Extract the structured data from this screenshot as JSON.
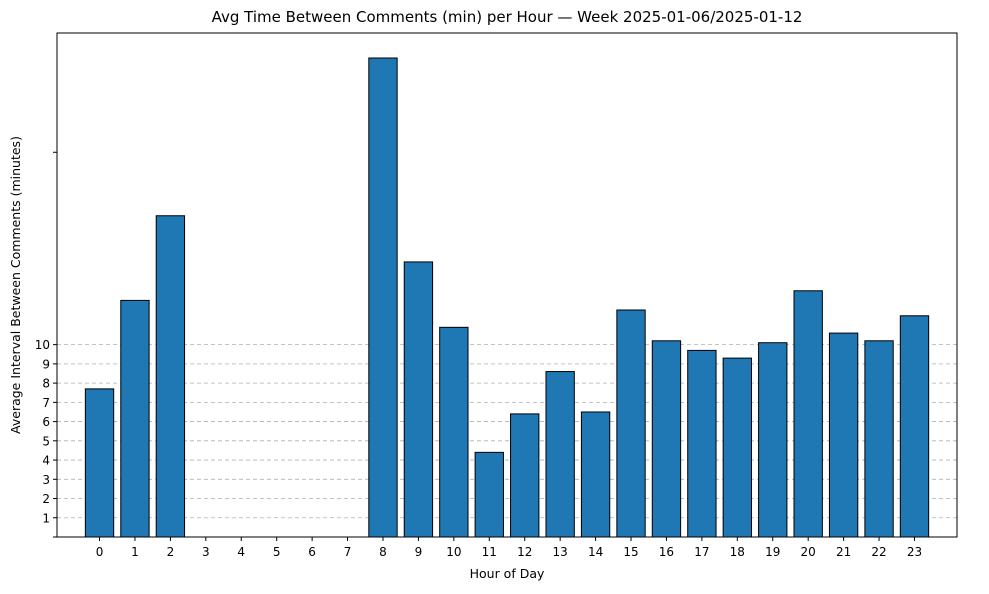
{
  "chart_data": {
    "type": "bar",
    "title": "Avg Time Between Comments (min) per Hour — Week 2025-01-06/2025-01-12",
    "xlabel": "Hour of Day",
    "ylabel": "Average Interval Between Comments (minutes)",
    "categories": [
      "0",
      "1",
      "2",
      "3",
      "4",
      "5",
      "6",
      "7",
      "8",
      "9",
      "10",
      "11",
      "12",
      "13",
      "14",
      "15",
      "16",
      "17",
      "18",
      "19",
      "20",
      "21",
      "22",
      "23"
    ],
    "values": [
      7.7,
      12.3,
      16.7,
      0,
      0,
      0,
      0,
      0,
      24.9,
      14.3,
      10.9,
      4.4,
      6.4,
      8.6,
      6.5,
      11.8,
      10.2,
      9.7,
      9.3,
      10.1,
      12.8,
      10.6,
      10.2,
      11.5
    ],
    "ylim": [
      0,
      26.2
    ],
    "yticks": [
      1,
      2,
      3,
      4,
      5,
      6,
      7,
      8,
      9,
      10
    ],
    "grid": "y-dashed",
    "bar_color": "#1f77b4",
    "edge_color": "#000000"
  }
}
